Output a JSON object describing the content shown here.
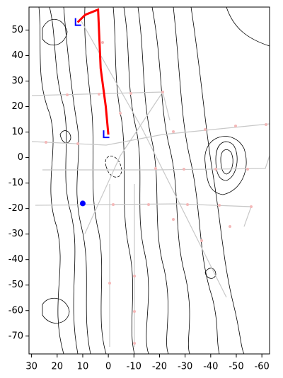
{
  "map": {
    "xlim": [
      31,
      -63
    ],
    "ylim": [
      -77,
      59
    ],
    "xticks": [
      30,
      20,
      10,
      0,
      -10,
      -20,
      -30,
      -40,
      -50,
      -60
    ],
    "yticks": [
      50,
      40,
      30,
      20,
      10,
      0,
      -10,
      -20,
      -30,
      -40,
      -50,
      -60,
      -70
    ],
    "route": {
      "x": [
        12,
        9,
        4,
        3,
        1,
        0
      ],
      "y": [
        53,
        56,
        58,
        35,
        20,
        9
      ]
    },
    "markers": {
      "x": [
        12,
        1
      ],
      "y": [
        53,
        9
      ]
    },
    "point": {
      "x": 10,
      "y": -18
    }
  }
}
